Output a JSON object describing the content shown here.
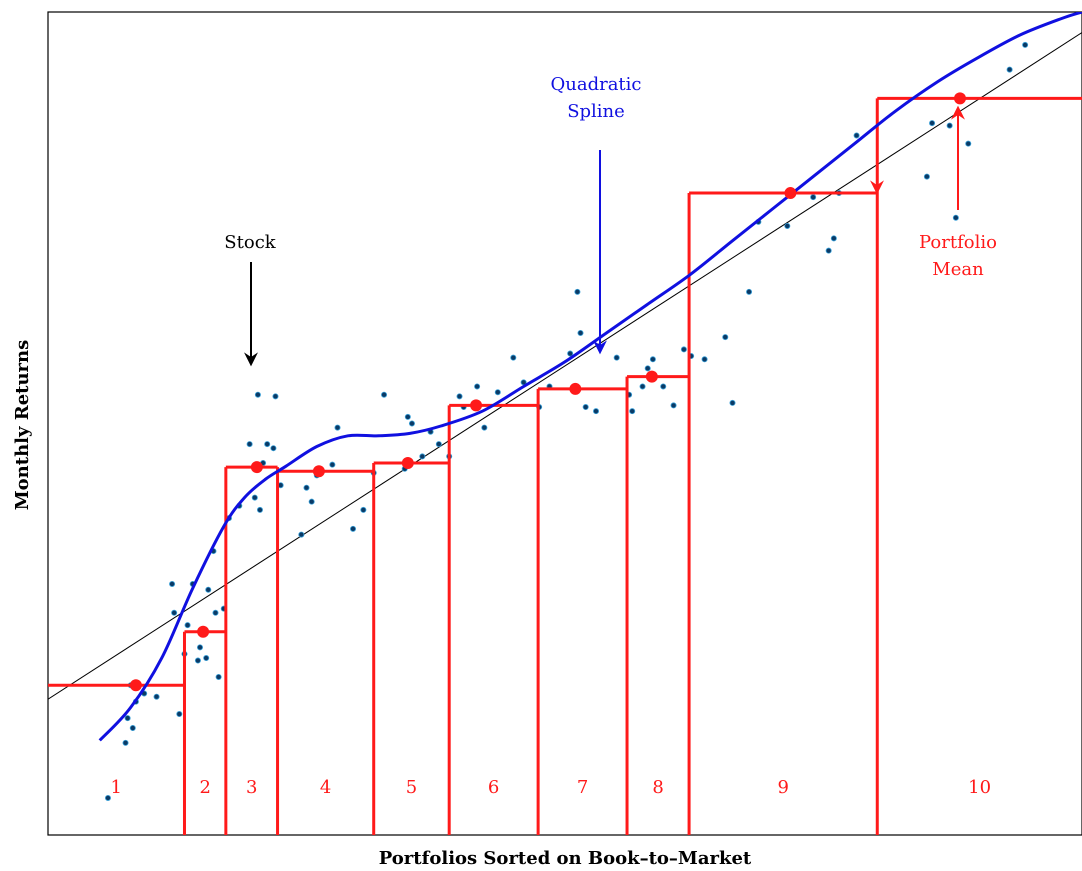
{
  "chart_data": {
    "type": "scatter",
    "xlabel": "Portfolios Sorted on Book–to–Market",
    "ylabel": "Monthly Returns",
    "xlim": [
      0,
      10
    ],
    "ylim": [
      0,
      10
    ],
    "colors": {
      "stocks": "#0a3a66",
      "spline": "#1010e0",
      "regression": "#000000",
      "portfolio": "#ff1a1a"
    },
    "annotations": {
      "stock": "Stock",
      "spline": [
        "Quadratic",
        "Spline"
      ],
      "portfolio_mean": [
        "Portfolio",
        "Mean"
      ]
    },
    "portfolios": [
      {
        "label": "1",
        "x0": 0.0,
        "x1": 1.32,
        "mean_x": 0.85,
        "mean": 1.82
      },
      {
        "label": "2",
        "x0": 1.32,
        "x1": 1.72,
        "mean_x": 1.5,
        "mean": 2.47
      },
      {
        "label": "3",
        "x0": 1.72,
        "x1": 2.22,
        "mean_x": 2.02,
        "mean": 4.47
      },
      {
        "label": "4",
        "x0": 2.22,
        "x1": 3.15,
        "mean_x": 2.62,
        "mean": 4.42
      },
      {
        "label": "5",
        "x0": 3.15,
        "x1": 3.88,
        "mean_x": 3.48,
        "mean": 4.52
      },
      {
        "label": "6",
        "x0": 3.88,
        "x1": 4.74,
        "mean_x": 4.14,
        "mean": 5.22
      },
      {
        "label": "7",
        "x0": 4.74,
        "x1": 5.6,
        "mean_x": 5.1,
        "mean": 5.42
      },
      {
        "label": "8",
        "x0": 5.6,
        "x1": 6.2,
        "mean_x": 5.84,
        "mean": 5.57
      },
      {
        "label": "9",
        "x0": 6.2,
        "x1": 8.02,
        "mean_x": 7.18,
        "mean": 7.8
      },
      {
        "label": "10",
        "x0": 8.02,
        "x1": 10.0,
        "mean_x": 8.82,
        "mean": 8.95
      }
    ],
    "spline": {
      "x": [
        0.5,
        0.8,
        1.1,
        1.4,
        1.7,
        1.9,
        2.1,
        2.3,
        2.6,
        2.9,
        3.2,
        3.5,
        3.8,
        4.2,
        4.6,
        5.0,
        5.4,
        5.8,
        6.2,
        6.6,
        7.0,
        7.4,
        7.8,
        8.2,
        8.6,
        9.0,
        9.4,
        9.8,
        10.0
      ],
      "y": [
        1.15,
        1.55,
        2.15,
        3.0,
        3.75,
        4.1,
        4.32,
        4.48,
        4.72,
        4.85,
        4.85,
        4.88,
        4.97,
        5.15,
        5.45,
        5.75,
        6.1,
        6.45,
        6.8,
        7.2,
        7.6,
        8.0,
        8.4,
        8.8,
        9.15,
        9.45,
        9.72,
        9.92,
        10.0
      ]
    },
    "regression": {
      "x": [
        0,
        10
      ],
      "y": [
        1.65,
        9.75
      ]
    },
    "stocks": {
      "x": [
        0.58,
        0.75,
        0.77,
        0.8,
        0.82,
        0.85,
        0.93,
        1.05,
        1.2,
        1.22,
        1.27,
        1.32,
        1.35,
        1.4,
        1.45,
        1.47,
        1.53,
        1.55,
        1.6,
        1.62,
        1.65,
        1.7,
        1.75,
        1.85,
        1.95,
        2.0,
        2.03,
        2.05,
        2.08,
        2.12,
        2.18,
        2.2,
        2.25,
        2.45,
        2.5,
        2.55,
        2.6,
        2.75,
        2.8,
        2.95,
        3.05,
        3.15,
        3.25,
        3.45,
        3.48,
        3.52,
        3.62,
        3.7,
        3.78,
        3.88,
        3.98,
        4.02,
        4.15,
        4.22,
        4.35,
        4.5,
        4.6,
        4.75,
        4.85,
        5.05,
        5.12,
        5.15,
        5.2,
        5.3,
        5.5,
        5.62,
        5.65,
        5.75,
        5.8,
        5.85,
        5.95,
        6.05,
        6.15,
        6.22,
        6.35,
        6.55,
        6.62,
        6.78,
        6.87,
        7.15,
        7.4,
        7.55,
        7.6,
        7.65,
        7.82,
        8.55,
        8.5,
        8.72,
        8.78,
        8.9,
        9.3,
        9.45
      ],
      "y": [
        0.45,
        1.12,
        1.42,
        1.82,
        1.3,
        1.62,
        1.72,
        1.68,
        3.05,
        2.7,
        1.47,
        2.2,
        2.55,
        3.05,
        2.12,
        2.28,
        2.15,
        2.98,
        3.45,
        2.7,
        1.92,
        2.75,
        3.85,
        4.0,
        4.75,
        4.1,
        5.35,
        3.95,
        4.52,
        4.75,
        4.7,
        5.33,
        4.25,
        3.65,
        4.22,
        4.05,
        4.37,
        4.5,
        4.95,
        3.72,
        3.95,
        4.4,
        5.35,
        4.45,
        5.08,
        5.0,
        4.6,
        4.9,
        4.75,
        4.6,
        5.33,
        5.2,
        5.45,
        4.95,
        5.38,
        5.8,
        5.5,
        5.2,
        5.45,
        5.85,
        6.6,
        6.1,
        5.2,
        5.15,
        5.8,
        5.35,
        5.15,
        5.45,
        5.67,
        5.78,
        5.45,
        5.22,
        5.9,
        5.82,
        5.78,
        6.05,
        5.25,
        6.6,
        7.45,
        7.4,
        7.75,
        7.1,
        7.25,
        7.8,
        8.5,
        8.65,
        8.0,
        8.62,
        7.5,
        8.4,
        9.3,
        9.6
      ]
    }
  }
}
